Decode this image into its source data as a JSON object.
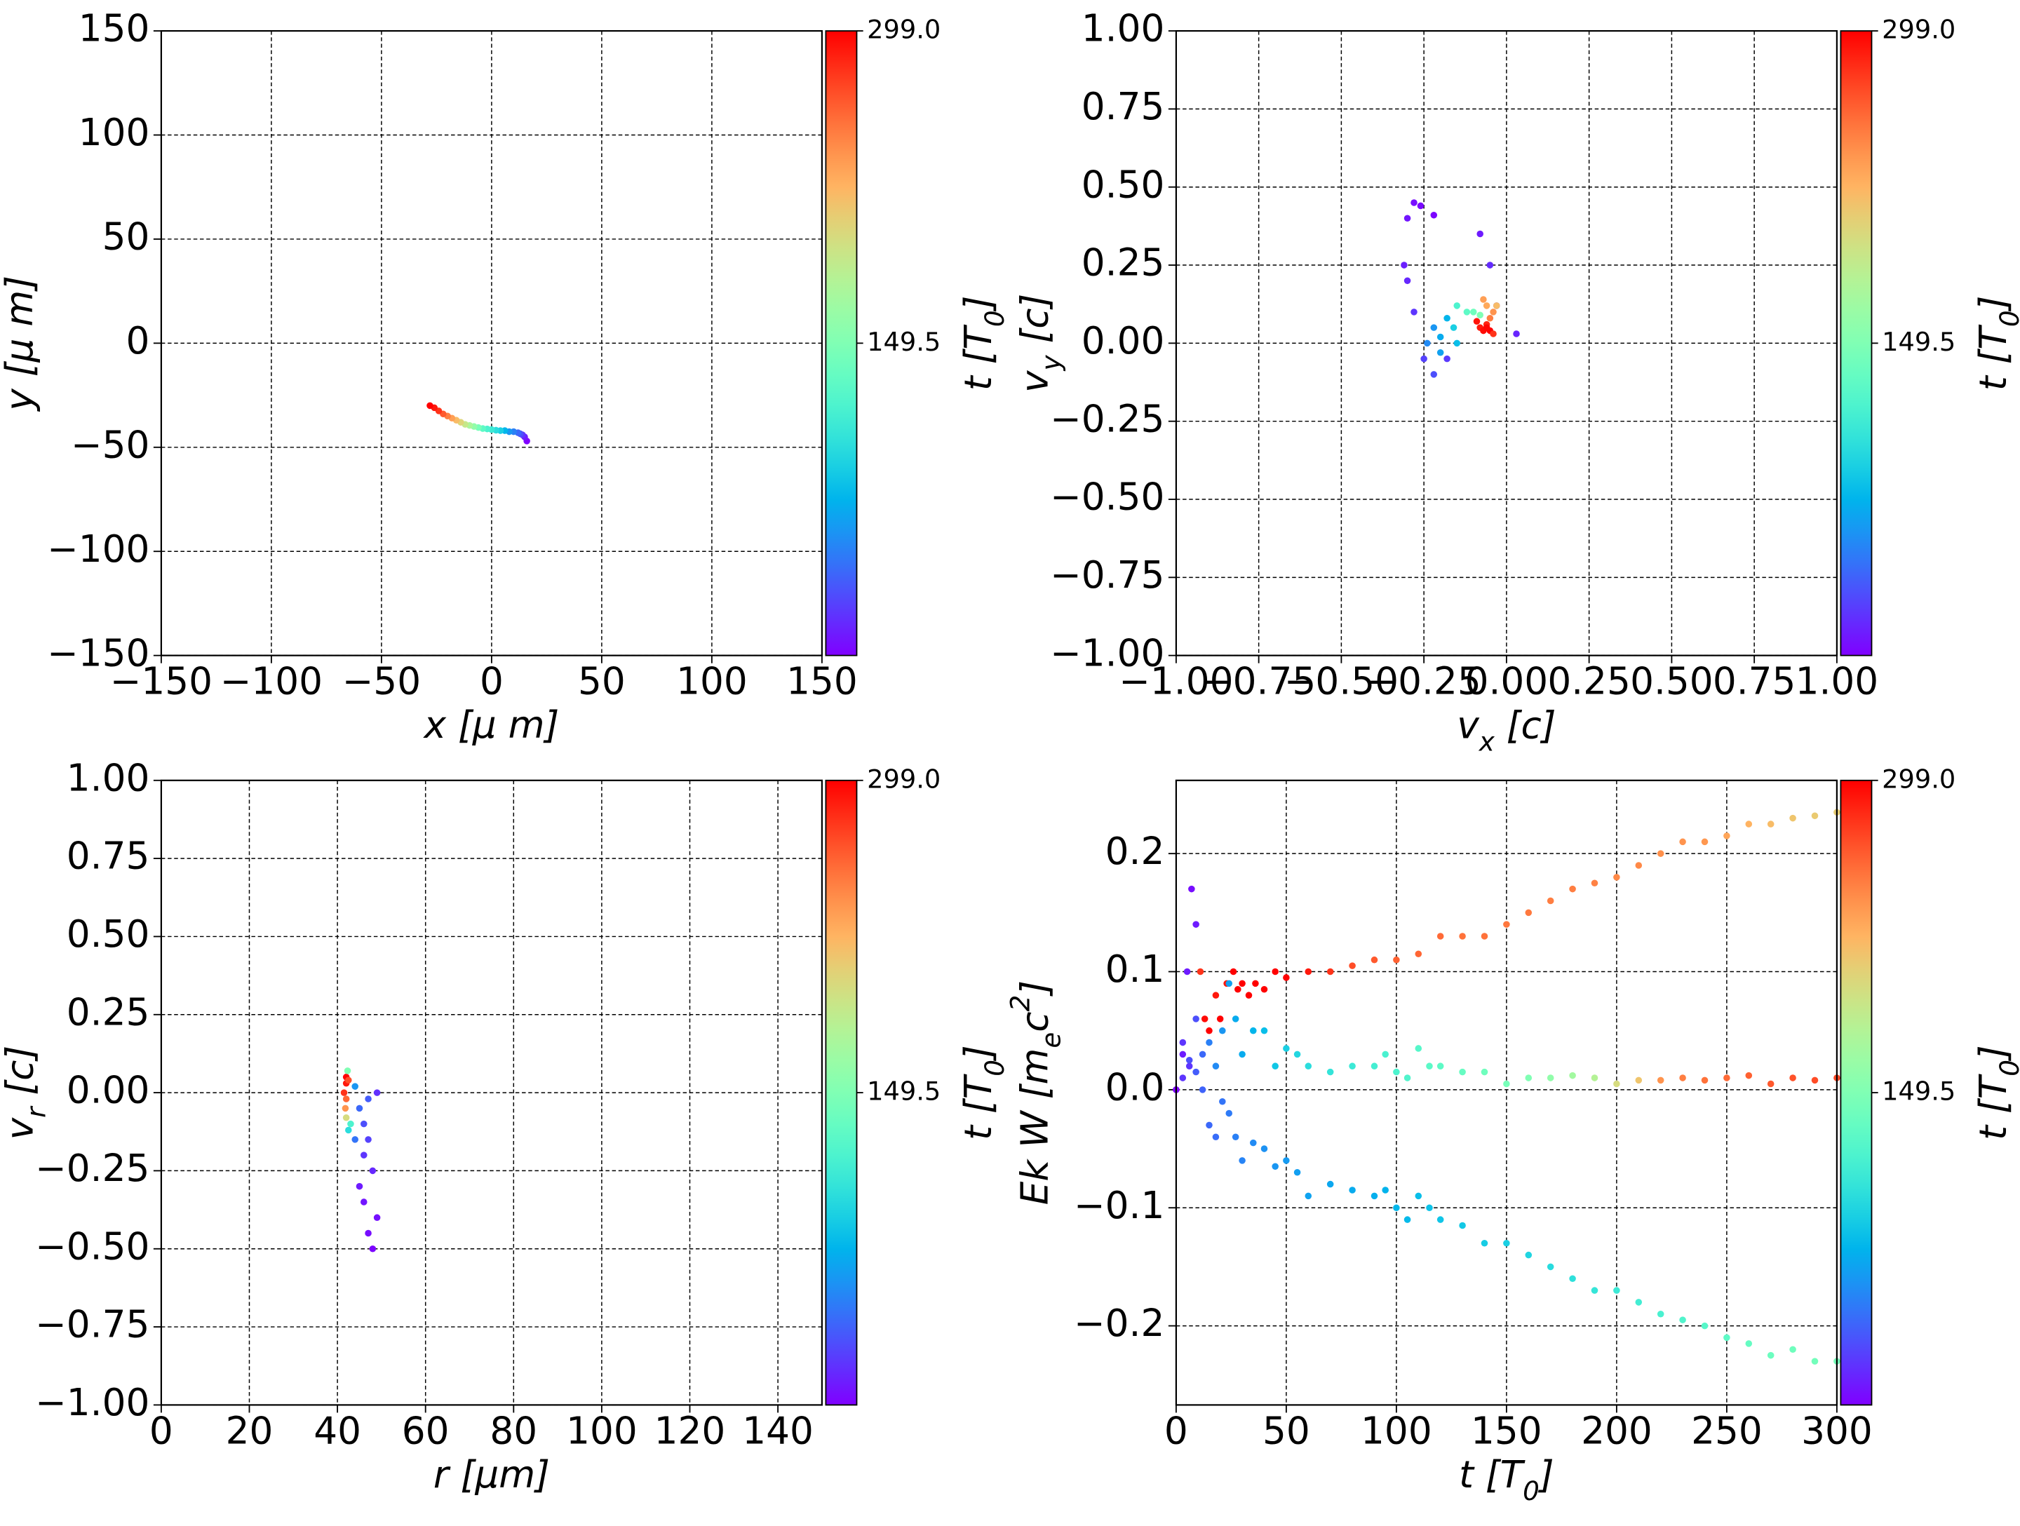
{
  "chart_data": [
    {
      "type": "scatter",
      "xlabel": "x  [μ m]",
      "ylabel": "y  [μ m]",
      "colormap": "rainbow",
      "grid": true,
      "xlim": [
        -150,
        150
      ],
      "ylim": [
        -150,
        150
      ],
      "xticks": [
        {
          "value": -150,
          "label": "−150"
        },
        {
          "value": -100,
          "label": "−100"
        },
        {
          "value": -50,
          "label": "−50"
        },
        0,
        50,
        100,
        150
      ],
      "yticks": [
        {
          "value": -150,
          "label": "−150"
        },
        {
          "value": -100,
          "label": "−100"
        },
        {
          "value": -50,
          "label": "−50"
        },
        0,
        50,
        100,
        150
      ],
      "colorbar": {
        "label": "t [T_0]",
        "lim": [
          0,
          299
        ],
        "ticks": [
          149.5,
          {
            "value": 299,
            "label": "299.0"
          }
        ]
      },
      "series": [
        {
          "x": [
            16,
            15,
            14,
            13,
            12,
            10,
            8,
            6,
            4,
            2,
            0,
            -2,
            -4,
            -6,
            -8,
            -10,
            -12,
            -14,
            -16,
            -18,
            -20,
            -22,
            -24,
            -26,
            -28
          ],
          "y": [
            -47,
            -45,
            -44,
            -43.5,
            -43,
            -42.5,
            -42.5,
            -42,
            -42,
            -41.8,
            -41.5,
            -41.2,
            -41,
            -40.5,
            -40,
            -39.5,
            -39,
            -38,
            -37,
            -36,
            -35,
            -34,
            -32.5,
            -31,
            -30
          ],
          "c": [
            0,
            10,
            20,
            30,
            40,
            50,
            60,
            75,
            90,
            100,
            110,
            120,
            130,
            145,
            160,
            175,
            190,
            205,
            220,
            235,
            250,
            265,
            280,
            290,
            299
          ]
        }
      ]
    },
    {
      "type": "scatter",
      "xlabel": "v_x [c]",
      "ylabel": "v_y [c]",
      "colormap": "rainbow",
      "grid": true,
      "xlim": [
        -1,
        1
      ],
      "ylim": [
        -1,
        1
      ],
      "xticks": [
        {
          "value": -1,
          "label": "−1.00"
        },
        {
          "value": -0.75,
          "label": "−0.75"
        },
        {
          "value": -0.5,
          "label": "−0.50"
        },
        {
          "value": -0.25,
          "label": "−0.25"
        },
        {
          "value": 0,
          "label": "0.00"
        },
        0.25,
        {
          "value": 0.5,
          "label": "0.50"
        },
        0.75,
        {
          "value": 1,
          "label": "1.00"
        }
      ],
      "yticks": [
        {
          "value": -1,
          "label": "−1.00"
        },
        {
          "value": -0.75,
          "label": "−0.75"
        },
        {
          "value": -0.5,
          "label": "−0.50"
        },
        {
          "value": -0.25,
          "label": "−0.25"
        },
        {
          "value": 0,
          "label": "0.00"
        },
        0.25,
        {
          "value": 0.5,
          "label": "0.50"
        },
        0.75,
        {
          "value": 1,
          "label": "1.00"
        }
      ],
      "colorbar": {
        "label": "t [T_0]",
        "lim": [
          0,
          299
        ],
        "ticks": [
          149.5,
          {
            "value": 299,
            "label": "299.0"
          }
        ]
      },
      "series": [
        {
          "x": [
            -0.28,
            -0.26,
            -0.3,
            -0.31,
            -0.3,
            -0.22,
            -0.28,
            -0.25,
            -0.22,
            -0.18,
            -0.08,
            -0.03,
            0.03,
            -0.05,
            -0.22,
            -0.2,
            -0.15,
            -0.18,
            -0.24,
            -0.16,
            -0.2,
            -0.12,
            -0.1,
            -0.15,
            -0.08,
            -0.06,
            -0.04,
            -0.05,
            -0.03,
            -0.07,
            -0.08,
            -0.07,
            -0.05,
            -0.06,
            -0.04,
            -0.09,
            -0.06
          ],
          "y": [
            0.45,
            0.44,
            0.4,
            0.25,
            0.2,
            0.41,
            0.1,
            -0.05,
            -0.1,
            -0.05,
            0.35,
            0.12,
            0.03,
            0.25,
            0.05,
            0.02,
            0.0,
            0.08,
            0.0,
            0.05,
            -0.03,
            0.1,
            0.1,
            0.12,
            0.09,
            0.12,
            0.1,
            0.08,
            0.12,
            0.14,
            0.05,
            0.04,
            0.04,
            0.06,
            0.03,
            0.07,
            0.05
          ],
          "c": [
            5,
            3,
            8,
            12,
            15,
            2,
            20,
            25,
            30,
            22,
            10,
            18,
            14,
            16,
            60,
            70,
            80,
            75,
            55,
            90,
            65,
            130,
            140,
            120,
            150,
            230,
            240,
            250,
            220,
            235,
            290,
            295,
            299,
            285,
            280,
            292,
            297
          ]
        }
      ]
    },
    {
      "type": "scatter",
      "xlabel": "r [μm]",
      "ylabel": "v_r [c]",
      "colormap": "rainbow",
      "grid": true,
      "xlim": [
        0,
        150
      ],
      "ylim": [
        -1,
        1
      ],
      "xticks": [
        0,
        20,
        40,
        60,
        80,
        100,
        120,
        140
      ],
      "yticks": [
        {
          "value": -1,
          "label": "−1.00"
        },
        {
          "value": -0.75,
          "label": "−0.75"
        },
        {
          "value": -0.5,
          "label": "−0.50"
        },
        {
          "value": -0.25,
          "label": "−0.25"
        },
        {
          "value": 0,
          "label": "0.00"
        },
        0.25,
        {
          "value": 0.5,
          "label": "0.50"
        },
        0.75,
        {
          "value": 1,
          "label": "1.00"
        }
      ],
      "colorbar": {
        "label": "t [T_0]",
        "lim": [
          0,
          299
        ],
        "ticks": [
          149.5,
          {
            "value": 299,
            "label": "299.0"
          }
        ]
      },
      "series": [
        {
          "x": [
            42,
            42,
            41.5,
            42,
            42.5,
            41.8,
            42,
            42.3,
            43,
            42.5,
            44,
            45,
            46,
            47,
            45,
            46,
            48,
            47,
            48,
            49,
            46,
            44,
            49,
            47
          ],
          "y": [
            0.05,
            0.03,
            0.0,
            -0.02,
            0.04,
            -0.05,
            -0.08,
            0.07,
            -0.1,
            -0.12,
            0.02,
            -0.05,
            -0.1,
            -0.15,
            -0.3,
            -0.35,
            -0.25,
            -0.45,
            -0.5,
            -0.4,
            -0.2,
            -0.15,
            0.0,
            -0.02
          ],
          "c": [
            299,
            290,
            280,
            260,
            270,
            240,
            200,
            150,
            120,
            100,
            60,
            40,
            30,
            25,
            10,
            8,
            15,
            5,
            2,
            6,
            20,
            45,
            18,
            35
          ]
        }
      ]
    },
    {
      "type": "scatter",
      "xlabel": "t [T_0]",
      "ylabel": "Ek W [m_ec^2]",
      "colormap": "rainbow",
      "grid": true,
      "xlim": [
        0,
        300
      ],
      "ylim": [
        -0.267,
        0.262
      ],
      "xticks": [
        0,
        50,
        100,
        150,
        200,
        250,
        300
      ],
      "yticks": [
        {
          "value": -0.2,
          "label": "−0.2"
        },
        {
          "value": -0.1,
          "label": "−0.1"
        },
        {
          "value": 0,
          "label": "0.0"
        },
        0.1,
        0.2
      ],
      "colorbar": {
        "label": "t [T_0]",
        "lim": [
          0,
          299
        ],
        "ticks": [
          149.5,
          {
            "value": 299,
            "label": "299.0"
          }
        ]
      },
      "series": [
        {
          "x": [
            0,
            3,
            5,
            7,
            9,
            11,
            13,
            15,
            18,
            20,
            23,
            26,
            28,
            30,
            33,
            36,
            40,
            45,
            50,
            60,
            70,
            80,
            90,
            100,
            110,
            120,
            130,
            140,
            150,
            160,
            170,
            180,
            190,
            200,
            210,
            220,
            230,
            240,
            250,
            260,
            270,
            280,
            290,
            300
          ],
          "y": [
            0,
            0.04,
            0.1,
            0.17,
            0.14,
            0.1,
            0.06,
            0.05,
            0.08,
            0.06,
            0.09,
            0.1,
            0.085,
            0.09,
            0.08,
            0.09,
            0.085,
            0.1,
            0.095,
            0.1,
            0.1,
            0.105,
            0.11,
            0.11,
            0.115,
            0.13,
            0.13,
            0.13,
            0.14,
            0.15,
            0.16,
            0.17,
            0.175,
            0.18,
            0.19,
            0.2,
            0.21,
            0.21,
            0.215,
            0.225,
            0.225,
            0.23,
            0.232,
            0.235
          ],
          "c": [
            0,
            20,
            10,
            5,
            10,
            280,
            295,
            299,
            290,
            299,
            290,
            299,
            299,
            299,
            299,
            299,
            299,
            299,
            299,
            290,
            280,
            270,
            265,
            262,
            260,
            258,
            255,
            255,
            253,
            252,
            250,
            250,
            248,
            245,
            245,
            242,
            240,
            238,
            232,
            225,
            220,
            215,
            212,
            210
          ]
        },
        {
          "x": [
            0,
            3,
            6,
            9,
            12,
            15,
            18,
            21,
            24,
            27,
            30,
            35,
            40,
            45,
            50,
            55,
            60,
            70,
            80,
            90,
            95,
            100,
            105,
            110,
            115,
            120,
            130,
            140,
            150,
            160,
            170,
            180,
            190,
            200,
            210,
            220,
            230,
            240,
            250,
            260,
            270,
            280,
            290,
            300
          ],
          "y": [
            0,
            0.03,
            0.02,
            0.06,
            0.03,
            0.04,
            0.02,
            0.05,
            0.09,
            0.06,
            0.03,
            0.05,
            0.05,
            0.02,
            0.035,
            0.03,
            0.02,
            0.015,
            0.02,
            0.02,
            0.03,
            0.015,
            0.01,
            0.035,
            0.02,
            0.02,
            0.015,
            0.015,
            0.005,
            0.01,
            0.01,
            0.012,
            0.01,
            0.005,
            0.008,
            0.008,
            0.01,
            0.008,
            0.01,
            0.012,
            0.005,
            0.01,
            0.008,
            0.01
          ],
          "c": [
            0,
            10,
            20,
            30,
            40,
            50,
            55,
            60,
            65,
            70,
            70,
            75,
            80,
            85,
            90,
            95,
            100,
            105,
            110,
            115,
            118,
            120,
            122,
            125,
            128,
            130,
            135,
            140,
            145,
            150,
            160,
            170,
            180,
            200,
            215,
            240,
            250,
            255,
            258,
            262,
            265,
            268,
            270,
            272
          ]
        },
        {
          "x": [
            0,
            3,
            6,
            9,
            12,
            15,
            18,
            21,
            24,
            27,
            30,
            35,
            40,
            45,
            50,
            55,
            60,
            70,
            80,
            90,
            95,
            100,
            105,
            110,
            115,
            120,
            130,
            140,
            150,
            160,
            170,
            180,
            190,
            200,
            210,
            220,
            230,
            240,
            250,
            260,
            270,
            280,
            290,
            300
          ],
          "y": [
            0,
            0.01,
            0.025,
            0.015,
            0,
            -0.03,
            -0.04,
            -0.01,
            -0.02,
            -0.04,
            -0.06,
            -0.045,
            -0.05,
            -0.065,
            -0.06,
            -0.07,
            -0.09,
            -0.08,
            -0.085,
            -0.09,
            -0.085,
            -0.1,
            -0.11,
            -0.09,
            -0.1,
            -0.11,
            -0.115,
            -0.13,
            -0.13,
            -0.14,
            -0.15,
            -0.16,
            -0.17,
            -0.17,
            -0.18,
            -0.19,
            -0.195,
            -0.2,
            -0.21,
            -0.215,
            -0.225,
            -0.22,
            -0.23,
            -0.23
          ],
          "c": [
            0,
            20,
            30,
            35,
            38,
            40,
            42,
            45,
            48,
            50,
            52,
            55,
            58,
            60,
            62,
            64,
            66,
            68,
            70,
            72,
            74,
            76,
            78,
            80,
            82,
            84,
            86,
            88,
            90,
            94,
            98,
            102,
            106,
            110,
            114,
            118,
            122,
            126,
            130,
            134,
            138,
            140,
            142,
            144
          ]
        }
      ]
    }
  ]
}
